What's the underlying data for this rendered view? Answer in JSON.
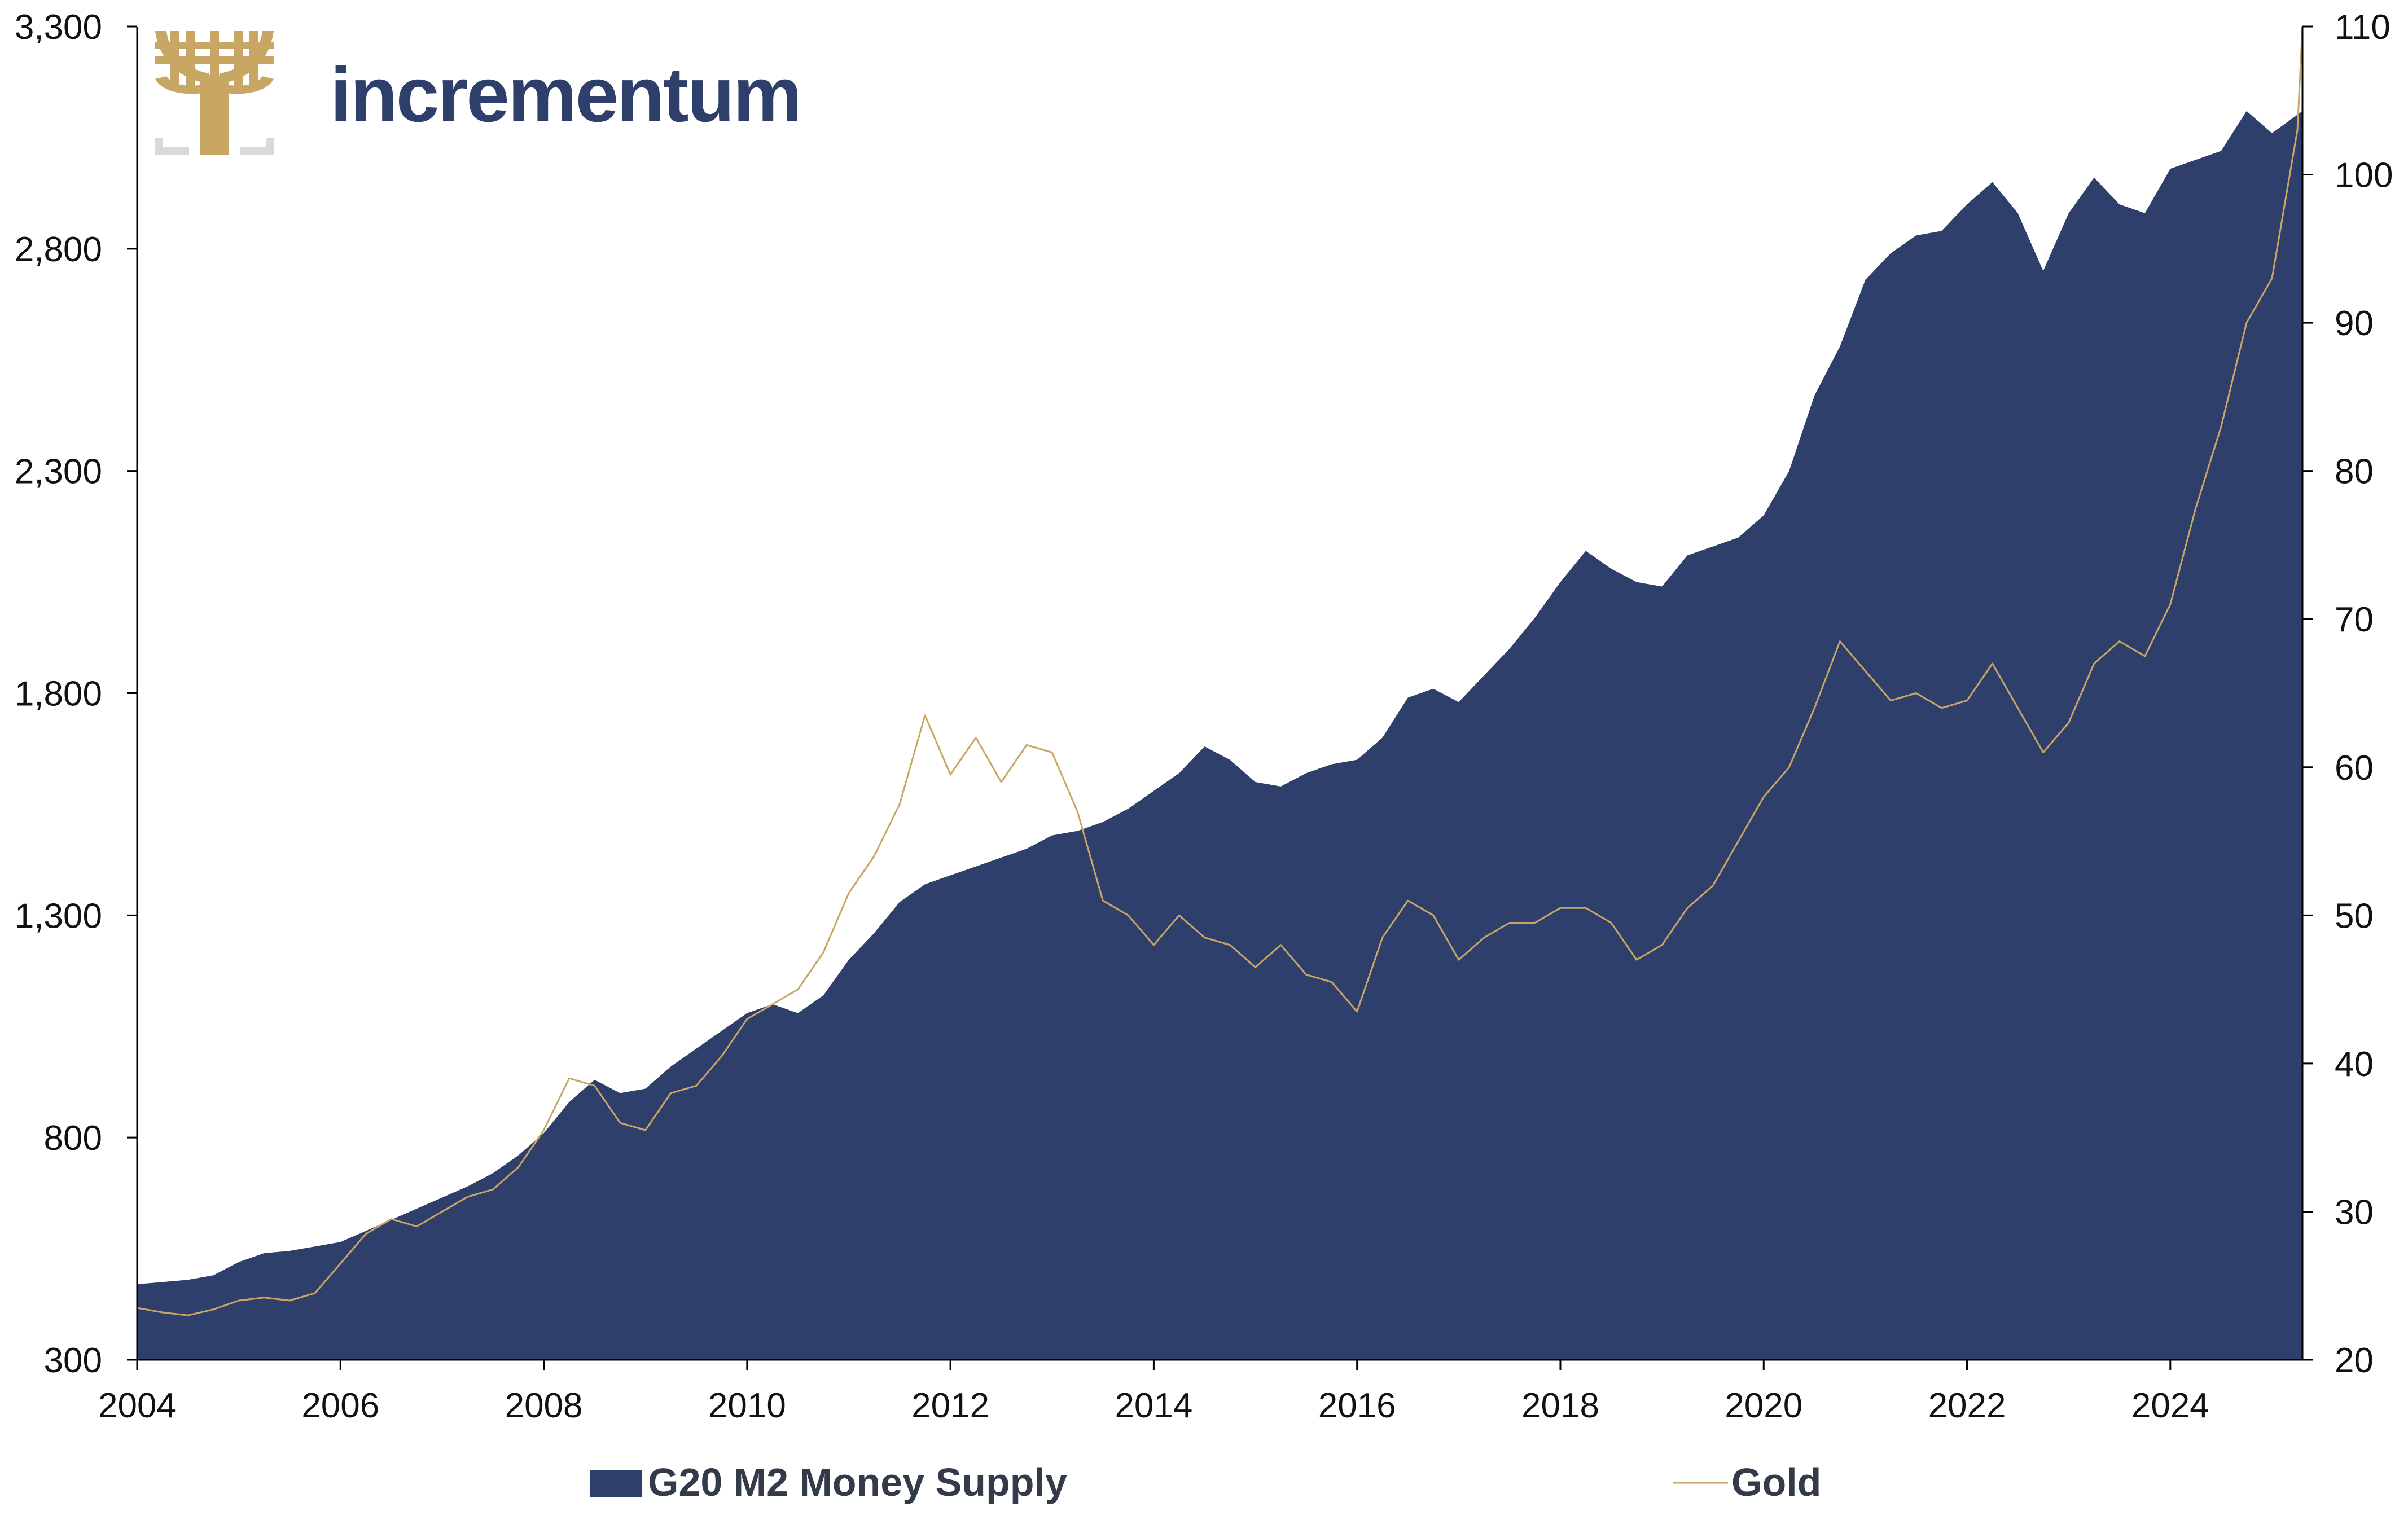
{
  "brand": {
    "name": "incrementum",
    "logo_color": "#c8a664",
    "text_color": "#2f3f6b"
  },
  "colors": {
    "m2_fill": "#2f3f6b",
    "gold_line": "#c8a664",
    "axis": "#000000"
  },
  "chart_data": {
    "type": "area",
    "title": "",
    "xlabel": "",
    "ylabel_left": "",
    "ylabel_right": "",
    "xlim": [
      2004.0,
      2025.3
    ],
    "ylim_left": [
      300,
      3300
    ],
    "ylim_right": [
      20,
      110
    ],
    "x_ticks": [
      "2004",
      "2006",
      "2008",
      "2010",
      "2012",
      "2014",
      "2016",
      "2018",
      "2020",
      "2022",
      "2024"
    ],
    "y_left_ticks": [
      "300",
      "800",
      "1,300",
      "1,800",
      "2,300",
      "2,800",
      "3,300"
    ],
    "y_right_ticks": [
      "20",
      "30",
      "40",
      "50",
      "60",
      "70",
      "80",
      "90",
      "100",
      "110"
    ],
    "grid": false,
    "legend_position": "bottom",
    "series": [
      {
        "name": "G20 M2 Money Supply",
        "type": "area",
        "axis": "left",
        "color": "#2f3f6b",
        "points": [
          [
            2004.0,
            470
          ],
          [
            2004.25,
            475
          ],
          [
            2004.5,
            480
          ],
          [
            2004.75,
            490
          ],
          [
            2005.0,
            520
          ],
          [
            2005.25,
            540
          ],
          [
            2005.5,
            545
          ],
          [
            2005.75,
            555
          ],
          [
            2006.0,
            565
          ],
          [
            2006.25,
            590
          ],
          [
            2006.5,
            615
          ],
          [
            2006.75,
            640
          ],
          [
            2007.0,
            665
          ],
          [
            2007.25,
            690
          ],
          [
            2007.5,
            720
          ],
          [
            2007.75,
            760
          ],
          [
            2008.0,
            810
          ],
          [
            2008.25,
            880
          ],
          [
            2008.5,
            930
          ],
          [
            2008.75,
            900
          ],
          [
            2009.0,
            910
          ],
          [
            2009.25,
            960
          ],
          [
            2009.5,
            1000
          ],
          [
            2009.75,
            1040
          ],
          [
            2010.0,
            1080
          ],
          [
            2010.25,
            1100
          ],
          [
            2010.5,
            1080
          ],
          [
            2010.75,
            1120
          ],
          [
            2011.0,
            1200
          ],
          [
            2011.25,
            1260
          ],
          [
            2011.5,
            1330
          ],
          [
            2011.75,
            1370
          ],
          [
            2012.0,
            1390
          ],
          [
            2012.25,
            1410
          ],
          [
            2012.5,
            1430
          ],
          [
            2012.75,
            1450
          ],
          [
            2013.0,
            1480
          ],
          [
            2013.25,
            1490
          ],
          [
            2013.5,
            1510
          ],
          [
            2013.75,
            1540
          ],
          [
            2014.0,
            1580
          ],
          [
            2014.25,
            1620
          ],
          [
            2014.5,
            1680
          ],
          [
            2014.75,
            1650
          ],
          [
            2015.0,
            1600
          ],
          [
            2015.25,
            1590
          ],
          [
            2015.5,
            1620
          ],
          [
            2015.75,
            1640
          ],
          [
            2016.0,
            1650
          ],
          [
            2016.25,
            1700
          ],
          [
            2016.5,
            1790
          ],
          [
            2016.75,
            1810
          ],
          [
            2017.0,
            1780
          ],
          [
            2017.25,
            1840
          ],
          [
            2017.5,
            1900
          ],
          [
            2017.75,
            1970
          ],
          [
            2018.0,
            2050
          ],
          [
            2018.25,
            2120
          ],
          [
            2018.5,
            2080
          ],
          [
            2018.75,
            2050
          ],
          [
            2019.0,
            2040
          ],
          [
            2019.25,
            2110
          ],
          [
            2019.5,
            2130
          ],
          [
            2019.75,
            2150
          ],
          [
            2020.0,
            2200
          ],
          [
            2020.25,
            2300
          ],
          [
            2020.5,
            2470
          ],
          [
            2020.75,
            2580
          ],
          [
            2021.0,
            2730
          ],
          [
            2021.25,
            2790
          ],
          [
            2021.5,
            2830
          ],
          [
            2021.75,
            2840
          ],
          [
            2022.0,
            2900
          ],
          [
            2022.25,
            2950
          ],
          [
            2022.5,
            2880
          ],
          [
            2022.75,
            2750
          ],
          [
            2023.0,
            2880
          ],
          [
            2023.25,
            2960
          ],
          [
            2023.5,
            2900
          ],
          [
            2023.75,
            2880
          ],
          [
            2024.0,
            2980
          ],
          [
            2024.25,
            3000
          ],
          [
            2024.5,
            3020
          ],
          [
            2024.75,
            3110
          ],
          [
            2025.0,
            3060
          ],
          [
            2025.3,
            3110
          ]
        ]
      },
      {
        "name": "Gold",
        "type": "line",
        "axis": "right",
        "color": "#c8a664",
        "points": [
          [
            2004.0,
            23.5
          ],
          [
            2004.25,
            23.2
          ],
          [
            2004.5,
            23.0
          ],
          [
            2004.75,
            23.4
          ],
          [
            2005.0,
            24.0
          ],
          [
            2005.25,
            24.2
          ],
          [
            2005.5,
            24.0
          ],
          [
            2005.75,
            24.5
          ],
          [
            2006.0,
            26.5
          ],
          [
            2006.25,
            28.5
          ],
          [
            2006.5,
            29.5
          ],
          [
            2006.75,
            29.0
          ],
          [
            2007.0,
            30.0
          ],
          [
            2007.25,
            31.0
          ],
          [
            2007.5,
            31.5
          ],
          [
            2007.75,
            33.0
          ],
          [
            2008.0,
            35.5
          ],
          [
            2008.25,
            39.0
          ],
          [
            2008.5,
            38.5
          ],
          [
            2008.75,
            36.0
          ],
          [
            2009.0,
            35.5
          ],
          [
            2009.25,
            38.0
          ],
          [
            2009.5,
            38.5
          ],
          [
            2009.75,
            40.5
          ],
          [
            2010.0,
            43.0
          ],
          [
            2010.25,
            44.0
          ],
          [
            2010.5,
            45.0
          ],
          [
            2010.75,
            47.5
          ],
          [
            2011.0,
            51.5
          ],
          [
            2011.25,
            54.0
          ],
          [
            2011.5,
            57.5
          ],
          [
            2011.75,
            63.5
          ],
          [
            2012.0,
            59.5
          ],
          [
            2012.25,
            62.0
          ],
          [
            2012.5,
            59.0
          ],
          [
            2012.75,
            61.5
          ],
          [
            2013.0,
            61.0
          ],
          [
            2013.25,
            57.0
          ],
          [
            2013.5,
            51.0
          ],
          [
            2013.75,
            50.0
          ],
          [
            2014.0,
            48.0
          ],
          [
            2014.25,
            50.0
          ],
          [
            2014.5,
            48.5
          ],
          [
            2014.75,
            48.0
          ],
          [
            2015.0,
            46.5
          ],
          [
            2015.25,
            48.0
          ],
          [
            2015.5,
            46.0
          ],
          [
            2015.75,
            45.5
          ],
          [
            2016.0,
            43.5
          ],
          [
            2016.25,
            48.5
          ],
          [
            2016.5,
            51.0
          ],
          [
            2016.75,
            50.0
          ],
          [
            2017.0,
            47.0
          ],
          [
            2017.25,
            48.5
          ],
          [
            2017.5,
            49.5
          ],
          [
            2017.75,
            49.5
          ],
          [
            2018.0,
            50.5
          ],
          [
            2018.25,
            50.5
          ],
          [
            2018.5,
            49.5
          ],
          [
            2018.75,
            47.0
          ],
          [
            2019.0,
            48.0
          ],
          [
            2019.25,
            50.5
          ],
          [
            2019.5,
            52.0
          ],
          [
            2019.75,
            55.0
          ],
          [
            2020.0,
            58.0
          ],
          [
            2020.25,
            60.0
          ],
          [
            2020.5,
            64.0
          ],
          [
            2020.75,
            68.5
          ],
          [
            2021.0,
            66.5
          ],
          [
            2021.25,
            64.5
          ],
          [
            2021.5,
            65.0
          ],
          [
            2021.75,
            64.0
          ],
          [
            2022.0,
            64.5
          ],
          [
            2022.25,
            67.0
          ],
          [
            2022.5,
            64.0
          ],
          [
            2022.75,
            61.0
          ],
          [
            2023.0,
            63.0
          ],
          [
            2023.25,
            67.0
          ],
          [
            2023.5,
            68.5
          ],
          [
            2023.75,
            67.5
          ],
          [
            2024.0,
            71.0
          ],
          [
            2024.25,
            77.5
          ],
          [
            2024.5,
            83.0
          ],
          [
            2024.75,
            90.0
          ],
          [
            2025.0,
            93.0
          ],
          [
            2025.25,
            103.0
          ],
          [
            2025.3,
            110.0
          ]
        ]
      }
    ]
  }
}
